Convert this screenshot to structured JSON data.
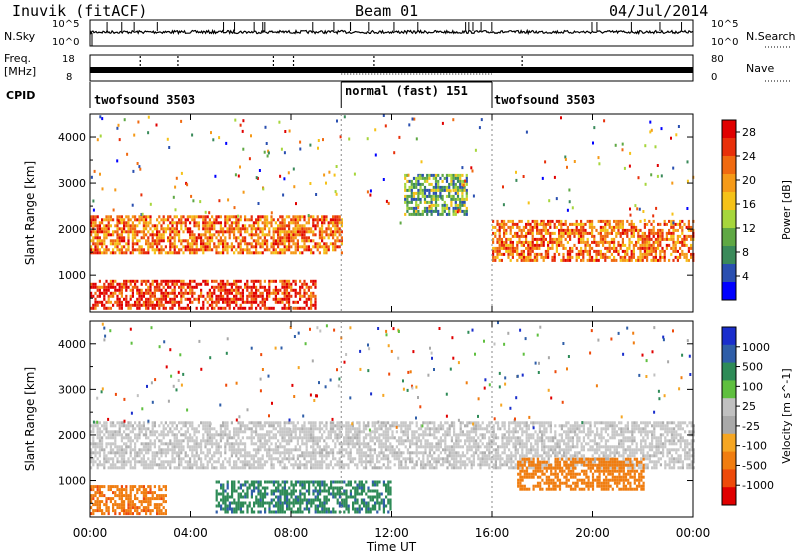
{
  "header": {
    "station": "Inuvik (fitACF)",
    "beam": "Beam 01",
    "date": "04/Jul/2014"
  },
  "side_labels": {
    "nsky": "N.Sky",
    "nsky_ticks": [
      "10^5",
      "10^0"
    ],
    "nsearch": "N.Search",
    "nsearch_ticks": [
      "10^5",
      "10^0"
    ],
    "freq_line1": "Freq.",
    "freq_line2": "[MHz]",
    "freq_ticks": [
      "18",
      "8"
    ],
    "nave": "Nave",
    "nave_ticks": [
      "80",
      "0"
    ],
    "cpid": "CPID"
  },
  "cpid_segments": [
    {
      "label": "twofsound 3503",
      "start": "00:00",
      "end": "10:00"
    },
    {
      "label": "normal (fast) 151",
      "start": "10:00",
      "end": "16:00"
    },
    {
      "label": "twofsound 3503",
      "start": "16:00",
      "end": "24:00"
    }
  ],
  "colors": {
    "power_scale": [
      "#0000ff",
      "#2a4fb0",
      "#3a8a5a",
      "#5fa844",
      "#a6d63c",
      "#f5c218",
      "#f59a18",
      "#f06a10",
      "#e8300a",
      "#e00000"
    ],
    "velocity_scale": [
      "#1a2ecc",
      "#2f5ea8",
      "#2e8b57",
      "#5fbf3f",
      "#c0c0c0",
      "#a9a9a9",
      "#f5a623",
      "#f07d10",
      "#ee4a0a",
      "#e00000"
    ]
  },
  "chart_data": [
    {
      "type": "heatmap",
      "panel": "power",
      "title": "",
      "xlabel": "Time UT",
      "ylabel": "Slant Range [km]",
      "x_range": [
        "00:00",
        "24:00"
      ],
      "x_ticks": [
        "00:00",
        "04:00",
        "08:00",
        "12:00",
        "16:00",
        "20:00",
        "00:00"
      ],
      "ylim": [
        200,
        4500
      ],
      "y_ticks": [
        1000,
        2000,
        3000,
        4000
      ],
      "colorbar": {
        "label": "Power [dB]",
        "ticks": [
          4,
          8,
          12,
          16,
          20,
          24,
          28
        ],
        "range": [
          0,
          30
        ]
      },
      "features": [
        {
          "name": "near-range echoes",
          "time": [
            "00:00",
            "09:00"
          ],
          "range_km": [
            300,
            900
          ],
          "power_db": 26
        },
        {
          "name": "main band",
          "time": [
            "00:00",
            "10:00"
          ],
          "range_km": [
            1500,
            2300
          ],
          "power_db": 22
        },
        {
          "name": "main band",
          "time": [
            "16:00",
            "24:00"
          ],
          "range_km": [
            1300,
            2200
          ],
          "power_db": 22
        },
        {
          "name": "high-range patch",
          "time": [
            "12:30",
            "15:00"
          ],
          "range_km": [
            2300,
            3200
          ],
          "power_db": 10
        }
      ]
    },
    {
      "type": "heatmap",
      "panel": "velocity",
      "title": "",
      "xlabel": "Time UT",
      "ylabel": "Slant Range [km]",
      "x_range": [
        "00:00",
        "24:00"
      ],
      "x_ticks": [
        "00:00",
        "04:00",
        "08:00",
        "12:00",
        "16:00",
        "20:00",
        "00:00"
      ],
      "ylim": [
        200,
        4500
      ],
      "y_ticks": [
        1000,
        2000,
        3000,
        4000
      ],
      "colorbar": {
        "label": "Velocity [m s^-1]",
        "ticks": [
          "1000",
          "500",
          "100",
          "25",
          "-25",
          "-100",
          "-500",
          "-1000"
        ]
      },
      "features": [
        {
          "name": "ground-scatter band",
          "time": [
            "00:00",
            "24:00"
          ],
          "range_km": [
            1300,
            2300
          ],
          "velocity": 0
        },
        {
          "name": "near-range receding",
          "time": [
            "00:00",
            "03:00"
          ],
          "range_km": [
            300,
            900
          ],
          "velocity": -300
        },
        {
          "name": "near-range approaching",
          "time": [
            "05:00",
            "12:00"
          ],
          "range_km": [
            300,
            1000
          ],
          "velocity": 200
        },
        {
          "name": "receding arc",
          "time": [
            "17:00",
            "22:00"
          ],
          "range_km": [
            800,
            1500
          ],
          "velocity": -250
        }
      ]
    }
  ]
}
